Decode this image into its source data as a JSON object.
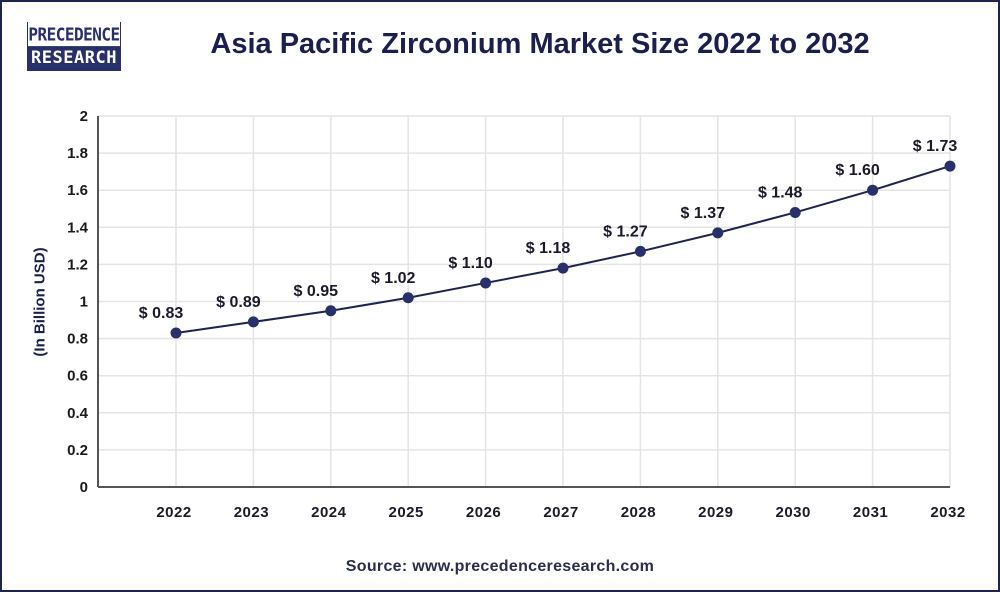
{
  "logo": {
    "line1": "PRECEDENCE",
    "line2": "RESEARCH"
  },
  "header": {
    "title": "Asia Pacific Zirconium Market Size 2022 to 2032"
  },
  "footer": {
    "source": "Source: www.precedenceresearch.com"
  },
  "colors": {
    "line": "#1e2350",
    "marker": "#27306b",
    "grid": "#e4e4e4",
    "axis": "#555555",
    "title": "#1a1f4d"
  },
  "chart_data": {
    "type": "line",
    "title": "Asia Pacific Zirconium Market Size 2022 to 2032",
    "xlabel": "",
    "ylabel": "(In Billion USD)",
    "categories": [
      "2022",
      "2023",
      "2024",
      "2025",
      "2026",
      "2027",
      "2028",
      "2029",
      "2030",
      "2031",
      "2032"
    ],
    "series": [
      {
        "name": "Market Size",
        "values": [
          0.83,
          0.89,
          0.95,
          1.02,
          1.1,
          1.18,
          1.27,
          1.37,
          1.48,
          1.6,
          1.73
        ]
      }
    ],
    "data_labels": [
      "$ 0.83",
      "$ 0.89",
      "$ 0.95",
      "$ 1.02",
      "$ 1.10",
      "$ 1.18",
      "$ 1.27",
      "$ 1.37",
      "$ 1.48",
      "$ 1.60",
      "$ 1.73"
    ],
    "yticks": [
      "0",
      "0.2",
      "0.4",
      "0.6",
      "0.8",
      "1",
      "1.2",
      "1.4",
      "1.6",
      "1.8",
      "2"
    ],
    "ylim": [
      0,
      2
    ],
    "grid": true,
    "legend": "none"
  }
}
